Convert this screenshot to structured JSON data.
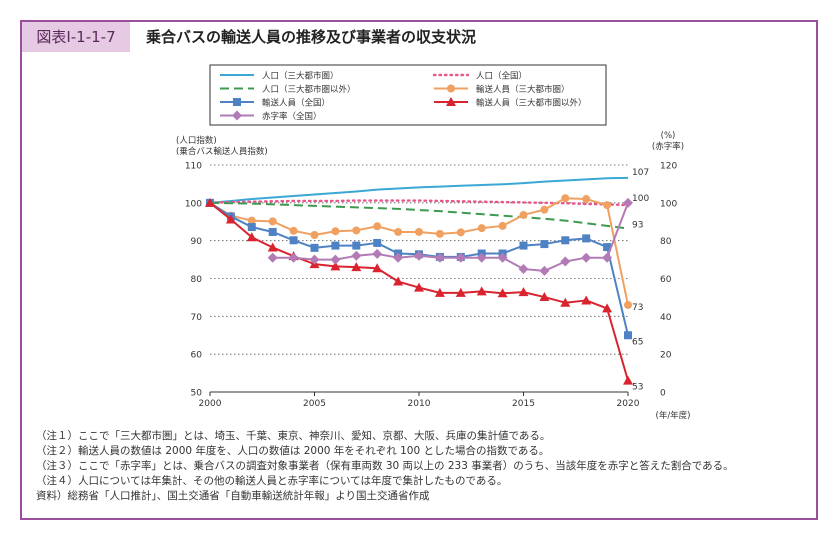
{
  "figure": {
    "id": "図表Ⅰ-1-1-7",
    "title": "乗合バスの輸送人員の推移及び事業者の収支状況"
  },
  "chart_data": {
    "type": "line",
    "x": [
      2000,
      2001,
      2002,
      2003,
      2004,
      2005,
      2006,
      2007,
      2008,
      2009,
      2010,
      2011,
      2012,
      2013,
      2014,
      2015,
      2016,
      2017,
      2018,
      2019,
      2020
    ],
    "xticks": [
      "2000",
      "2005",
      "2010",
      "2015",
      "2020"
    ],
    "x_unit": "(年/年度)",
    "y_left": {
      "label": [
        "(人口指数)",
        "(乗合バス輸送人員指数)"
      ],
      "ticks": [
        "50",
        "60",
        "70",
        "80",
        "90",
        "100",
        "110"
      ],
      "ylim": [
        50,
        110
      ]
    },
    "y_right": {
      "label": [
        "(%)",
        "(赤字率)"
      ],
      "ticks": [
        "0",
        "20",
        "40",
        "60",
        "80",
        "100",
        "120"
      ],
      "ylim": [
        0,
        120
      ]
    },
    "grid": true,
    "legend_placement": "top",
    "series": [
      {
        "name": "人口（三大都市圏）",
        "axis": "left",
        "color": "#3aa7d6",
        "style": "solid",
        "marker": "none",
        "values": [
          100,
          100.5,
          101,
          101.4,
          101.8,
          102.2,
          102.6,
          103,
          103.5,
          103.8,
          104.1,
          104.3,
          104.5,
          104.7,
          104.9,
          105.2,
          105.6,
          105.9,
          106.2,
          106.5,
          106.6
        ]
      },
      {
        "name": "人口（全国）",
        "axis": "left",
        "color": "#e8578a",
        "style": "dotted",
        "marker": "none",
        "values": [
          100,
          100.2,
          100.3,
          100.4,
          100.5,
          100.5,
          100.5,
          100.6,
          100.6,
          100.6,
          100.6,
          100.5,
          100.4,
          100.3,
          100.2,
          100.1,
          100,
          99.9,
          99.7,
          99.6,
          99.4
        ]
      },
      {
        "name": "人口（三大都市圏以外）",
        "axis": "left",
        "color": "#3d9a4f",
        "style": "dashed",
        "marker": "none",
        "values": [
          100,
          99.9,
          99.8,
          99.6,
          99.4,
          99.2,
          99,
          98.8,
          98.6,
          98.4,
          98.1,
          97.8,
          97.4,
          97,
          96.6,
          96.2,
          95.8,
          95.3,
          94.6,
          93.9,
          93.2
        ]
      },
      {
        "name": "輸送人員（三大都市圏）",
        "axis": "left",
        "color": "#f0a060",
        "style": "solid",
        "marker": "circle",
        "values": [
          100,
          96.6,
          95.3,
          95.1,
          92.6,
          91.5,
          92.5,
          92.7,
          93.8,
          92.3,
          92.3,
          91.8,
          92.2,
          93.3,
          93.9,
          96.8,
          98.2,
          101.2,
          101,
          99.4,
          73
        ]
      },
      {
        "name": "輸送人員（全国）",
        "axis": "left",
        "color": "#4f82c4",
        "style": "solid",
        "marker": "square",
        "values": [
          100,
          96.4,
          93.6,
          92.3,
          90.1,
          88.1,
          88.7,
          88.7,
          89.4,
          86.6,
          86.4,
          85.7,
          85.7,
          86.6,
          86.6,
          88.7,
          89.1,
          90.1,
          90.6,
          88.3,
          65
        ]
      },
      {
        "name": "輸送人員（三大都市圏以外）",
        "axis": "left",
        "color": "#d9232e",
        "style": "solid",
        "marker": "triangle",
        "values": [
          100,
          95.6,
          90.9,
          88.2,
          85.9,
          83.8,
          83.2,
          83,
          82.7,
          79.2,
          77.6,
          76.2,
          76.2,
          76.6,
          76.1,
          76.4,
          75.1,
          73.6,
          74.2,
          72.1,
          53
        ]
      },
      {
        "name": "赤字率（全国）",
        "axis": "right",
        "color": "#b27bb6",
        "style": "solid",
        "marker": "diamond",
        "values": [
          null,
          null,
          null,
          71,
          71,
          70,
          70,
          72,
          73,
          71,
          72,
          71,
          71,
          71,
          71,
          65,
          64,
          69,
          71,
          71,
          100
        ]
      }
    ],
    "end_labels": [
      {
        "text": "107",
        "value": 106.6,
        "axis": "left"
      },
      {
        "text": "100",
        "value": 100,
        "axis": "right"
      },
      {
        "text": "93",
        "value": 93.2,
        "axis": "left"
      },
      {
        "text": "73",
        "value": 73,
        "axis": "left"
      },
      {
        "text": "65",
        "value": 65,
        "axis": "left"
      },
      {
        "text": "53",
        "value": 53,
        "axis": "left"
      }
    ]
  },
  "notes": [
    "（注１）ここで「三大都市圏」とは、埼玉、千葉、東京、神奈川、愛知、京都、大阪、兵庫の集計値である。",
    "（注２）輸送人員の数値は 2000 年度を、人口の数値は 2000 年をそれぞれ 100 とした場合の指数である。",
    "（注３）ここで「赤字率」とは、乗合バスの調査対象事業者（保有車両数 30 両以上の 233 事業者）のうち、当該年度を赤字と答えた割合である。",
    "（注４）人口については年集計、その他の輸送人員と赤字率については年度で集計したものである。",
    "資料）総務省「人口推計」、国土交通省「自動車輸送統計年報」より国土交通省作成"
  ]
}
